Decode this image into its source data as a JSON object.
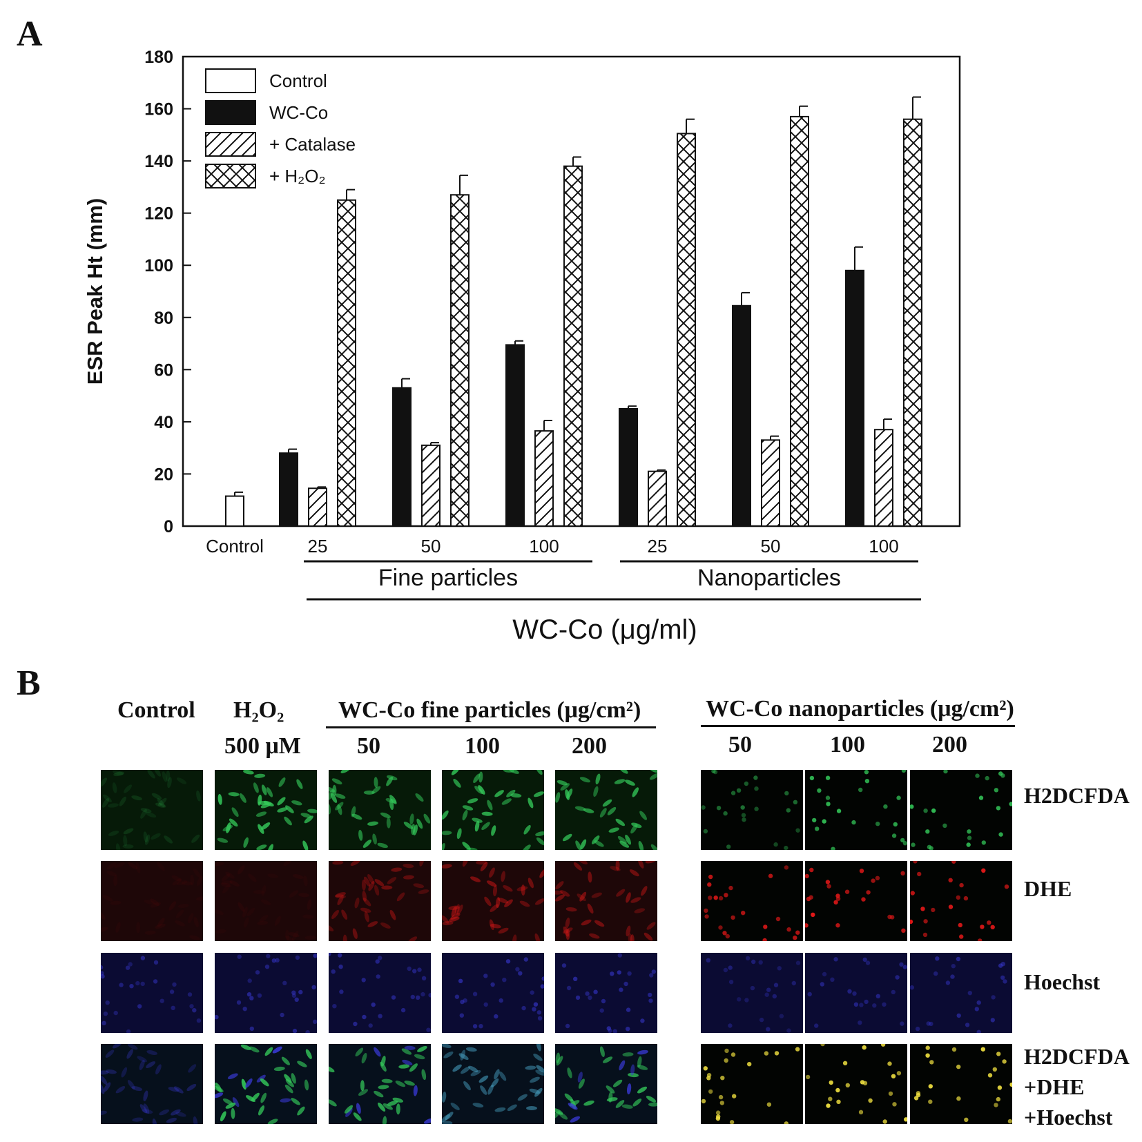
{
  "panelA": {
    "letter": "A",
    "chart_data": {
      "type": "bar",
      "ylabel": "ESR Peak Ht (mm)",
      "xlabel": "WC-Co (μg/ml)",
      "ylim": [
        0,
        180
      ],
      "yticks": [
        0,
        20,
        40,
        60,
        80,
        100,
        120,
        140,
        160,
        180
      ],
      "grid": false,
      "legend_position": "top-left",
      "series": [
        {
          "name": "Control",
          "pattern": "open",
          "values": [
            11.5,
            null,
            null,
            null,
            null,
            null,
            null
          ],
          "errors": [
            1.5,
            null,
            null,
            null,
            null,
            null,
            null
          ]
        },
        {
          "name": "WC-Co",
          "pattern": "solid",
          "values": [
            null,
            28,
            53,
            69.5,
            45,
            84.5,
            98
          ],
          "errors": [
            null,
            1.5,
            3.5,
            1.5,
            1,
            5,
            9
          ]
        },
        {
          "name": "+ Catalase",
          "pattern": "diagonal",
          "values": [
            null,
            14.5,
            31,
            36.5,
            21,
            33,
            37
          ],
          "errors": [
            null,
            0.5,
            1,
            4,
            0.5,
            1.5,
            4
          ]
        },
        {
          "name": "+ H₂O₂",
          "pattern": "crosshatch",
          "values": [
            null,
            125,
            127,
            138,
            150.5,
            157,
            156
          ],
          "errors": [
            null,
            4,
            7.5,
            3.5,
            5.5,
            4,
            8.5
          ]
        }
      ],
      "categories": [
        "Control",
        "25",
        "50",
        "100",
        "25",
        "50",
        "100"
      ],
      "groups": [
        {
          "label": "Fine particles",
          "categories": [
            1,
            2,
            3
          ]
        },
        {
          "label": "Nanoparticles",
          "categories": [
            4,
            5,
            6
          ]
        }
      ]
    }
  },
  "panelB": {
    "letter": "B",
    "headers": {
      "control": "Control",
      "h2o2": "H₂O₂",
      "h2o2_conc": "500 μM",
      "fine": "WC-Co fine particles (μg/cm²)",
      "nano": "WC-Co  nanoparticles (μg/cm²)",
      "fine_doses": [
        "50",
        "100",
        "200"
      ],
      "nano_doses": [
        "50",
        "100",
        "200"
      ]
    },
    "row_labels": [
      "H2DCFDA",
      "DHE",
      "Hoechst",
      "H2DCFDA",
      "+DHE",
      "+Hoechst"
    ],
    "colors": {
      "green": "#34c95a",
      "red": "#e01818",
      "blue": "#3a3ad8",
      "yellow": "#f0e040"
    }
  }
}
